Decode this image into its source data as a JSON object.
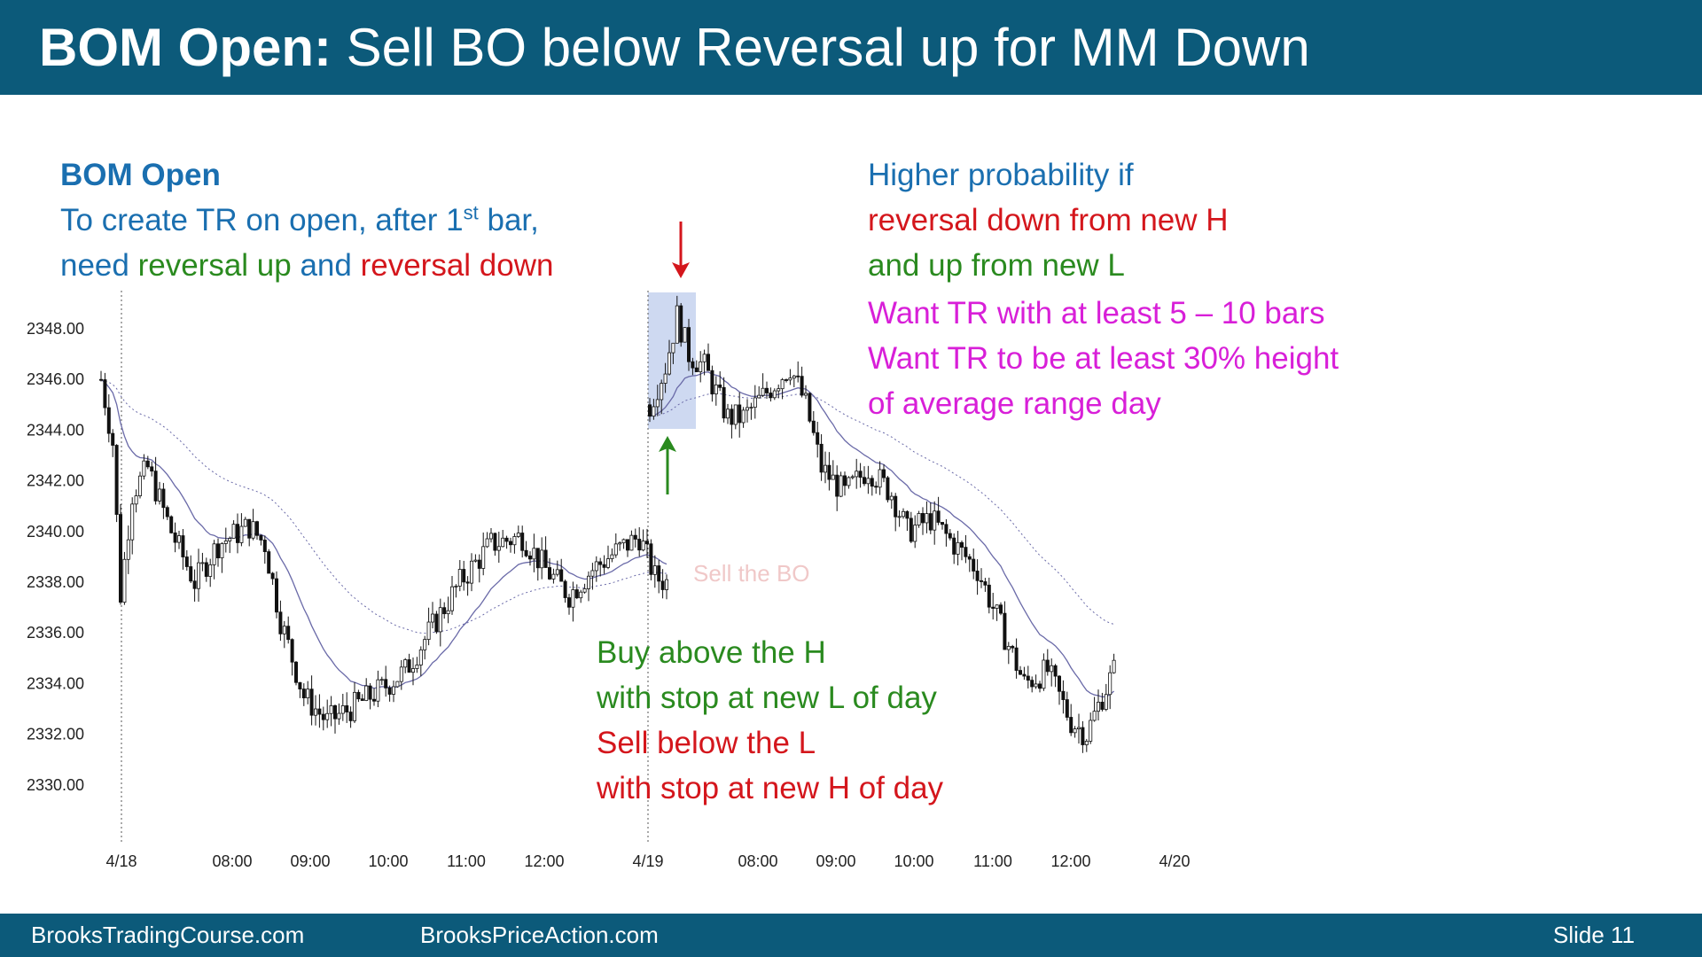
{
  "slide": {
    "title_bold": "BOM Open:",
    "title_rest": " Sell BO below Reversal up for MM Down",
    "footer_left": "BrooksTradingCourse.com",
    "footer_mid": "BrooksPriceAction.com",
    "footer_right": "Slide  11"
  },
  "notes": {
    "left_heading": "BOM Open",
    "left_line2_a": "To create TR on open, after 1",
    "left_line2_sup": "st",
    "left_line2_b": " bar,",
    "left_line3_a": "need ",
    "left_line3_green": "reversal up",
    "left_line3_mid": " and ",
    "left_line3_red": "reversal down",
    "right_line1": "Higher probability if",
    "right_line2": "reversal down from new H",
    "right_line3": "and up from new L",
    "right_line4": "Want TR with at least 5 – 10 bars",
    "right_line5": "Want TR to be at least 30% height",
    "right_line6": "of average range day",
    "bottom_line1": "Buy above the H",
    "bottom_line2": "with stop at new L of day",
    "bottom_line3": "Sell below the L",
    "bottom_line4": "with stop at new H of day",
    "faint_label": "Sell the BO"
  },
  "colors": {
    "header": "#0c5a7a",
    "blue": "#1a6fb0",
    "green": "#2a8a1f",
    "red": "#d4161c",
    "magenta": "#d81fd8",
    "ema": "#6a6aa8",
    "highlight": "#c5d2ee"
  },
  "chart_data": {
    "type": "candlestick",
    "y_ticks": [
      "2348.00",
      "2346.00",
      "2344.00",
      "2342.00",
      "2340.00",
      "2338.00",
      "2336.00",
      "2334.00",
      "2332.00",
      "2330.00"
    ],
    "x_ticks": [
      "4/18",
      "08:00",
      "09:00",
      "10:00",
      "11:00",
      "12:00",
      "4/19",
      "08:00",
      "09:00",
      "10:00",
      "11:00",
      "12:00",
      "4/20"
    ],
    "ylim": [
      2329.5,
      2349.5
    ],
    "day1": {
      "open": 2346.0,
      "path": [
        [
          0,
          2346.0
        ],
        [
          3,
          2343.5
        ],
        [
          5,
          2337.5
        ],
        [
          8,
          2341.5
        ],
        [
          12,
          2342.5
        ],
        [
          18,
          2340.0
        ],
        [
          24,
          2338.0
        ],
        [
          30,
          2339.5
        ],
        [
          38,
          2340.2
        ],
        [
          42,
          2339.5
        ],
        [
          46,
          2336.5
        ],
        [
          52,
          2333.5
        ],
        [
          58,
          2332.5
        ],
        [
          66,
          2333.2
        ],
        [
          72,
          2333.8
        ],
        [
          78,
          2334.5
        ],
        [
          84,
          2336.0
        ],
        [
          92,
          2338.0
        ],
        [
          100,
          2339.5
        ],
        [
          108,
          2339.8
        ],
        [
          114,
          2338.5
        ],
        [
          120,
          2337.5
        ],
        [
          126,
          2338.5
        ],
        [
          132,
          2339.2
        ],
        [
          138,
          2339.8
        ],
        [
          142,
          2338.2
        ],
        [
          145,
          2338.0
        ]
      ]
    },
    "day2": {
      "open": 2345.0,
      "path": [
        [
          0,
          2345.0
        ],
        [
          4,
          2346.5
        ],
        [
          7,
          2348.5
        ],
        [
          10,
          2347.0
        ],
        [
          14,
          2346.5
        ],
        [
          20,
          2344.5
        ],
        [
          24,
          2344.5
        ],
        [
          30,
          2345.5
        ],
        [
          36,
          2346.5
        ],
        [
          40,
          2345.0
        ],
        [
          44,
          2342.5
        ],
        [
          50,
          2341.5
        ],
        [
          56,
          2342.5
        ],
        [
          62,
          2341.5
        ],
        [
          66,
          2340.0
        ],
        [
          72,
          2340.5
        ],
        [
          78,
          2339.5
        ],
        [
          84,
          2338.5
        ],
        [
          88,
          2337.0
        ],
        [
          92,
          2335.5
        ],
        [
          96,
          2334.0
        ],
        [
          102,
          2334.5
        ],
        [
          108,
          2332.5
        ],
        [
          112,
          2332.0
        ],
        [
          116,
          2333.5
        ],
        [
          119,
          2334.5
        ]
      ]
    }
  }
}
